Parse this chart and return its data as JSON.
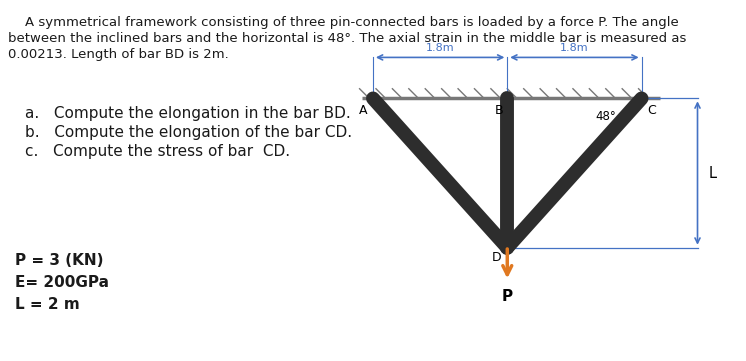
{
  "title_lines": [
    "    A symmetrical framework consisting of three pin-connected bars is loaded by a force P. The angle",
    "between the inclined bars and the horizontal is 48°. The axial strain in the middle bar is measured as",
    "0.00213. Length of bar BD is 2m."
  ],
  "questions": [
    "a.   Compute the elongation in the bar BD.",
    "b.   Compute the elongation of the bar CD.",
    "c.   Compute the stress of bar  CD."
  ],
  "params": [
    "P = 3 (KN)",
    "E= 200GPa",
    "L = 2 m"
  ],
  "bg_color": "#ffffff",
  "text_color": "#1a1a1a",
  "fontsize_title": 9.5,
  "fontsize_questions": 11.0,
  "fontsize_params": 11.0,
  "bar_color": "#2d2d2d",
  "arrow_color": "#E07820",
  "dim_color": "#4472C4"
}
